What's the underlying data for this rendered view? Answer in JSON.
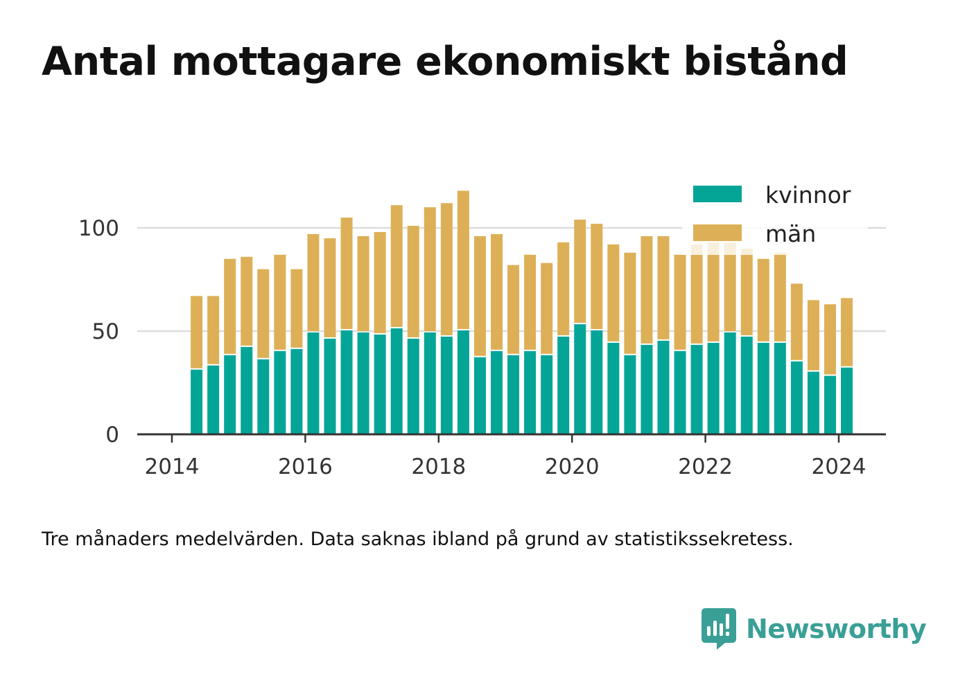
{
  "title": "Antal mottagare ekonomiskt bistånd",
  "note": "Tre månaders medelvärden. Data saknas ibland på grund av statistikssekretess.",
  "brand": {
    "name": "Newsworthy",
    "icon": "newsworthy-logo-icon",
    "color": "#3a9f96"
  },
  "chart_data": {
    "type": "bar",
    "stacked": true,
    "title": "Antal mottagare ekonomiskt bistånd",
    "xlabel": "",
    "ylabel": "",
    "x_ticks": [
      "2014",
      "2016",
      "2018",
      "2020",
      "2022",
      "2024"
    ],
    "y_ticks": [
      "0",
      "50",
      "100"
    ],
    "ylim": [
      0,
      120
    ],
    "grid": true,
    "legend_position": "top-right",
    "colors": {
      "kvinnor": "#04a597",
      "män": "#ddb057",
      "grid": "#dddddd",
      "axis": "#333333"
    },
    "x": [
      2014.37,
      2014.62,
      2014.87,
      2015.12,
      2015.37,
      2015.62,
      2015.87,
      2016.12,
      2016.37,
      2016.62,
      2016.87,
      2017.12,
      2017.37,
      2017.62,
      2017.87,
      2018.12,
      2018.37,
      2018.62,
      2018.87,
      2019.12,
      2019.37,
      2019.62,
      2019.87,
      2020.12,
      2020.37,
      2020.62,
      2020.87,
      2021.12,
      2021.37,
      2021.62,
      2021.87,
      2022.12,
      2022.37,
      2022.62,
      2022.87,
      2023.12,
      2023.37,
      2023.62,
      2023.87,
      2024.12
    ],
    "series": [
      {
        "name": "kvinnor",
        "values": [
          32,
          34,
          39,
          43,
          37,
          41,
          42,
          50,
          47,
          51,
          50,
          49,
          52,
          47,
          50,
          48,
          51,
          38,
          41,
          39,
          41,
          39,
          48,
          54,
          51,
          45,
          39,
          44,
          46,
          41,
          44,
          45,
          50,
          48,
          45,
          45,
          36,
          31,
          29,
          33
        ]
      },
      {
        "name": "män",
        "values": [
          35,
          33,
          46,
          43,
          43,
          46,
          38,
          47,
          48,
          54,
          46,
          49,
          59,
          54,
          60,
          64,
          67,
          58,
          56,
          43,
          46,
          44,
          45,
          50,
          51,
          47,
          49,
          52,
          50,
          46,
          48,
          48,
          43,
          42,
          40,
          43,
          37,
          34,
          34,
          33
        ]
      }
    ]
  }
}
